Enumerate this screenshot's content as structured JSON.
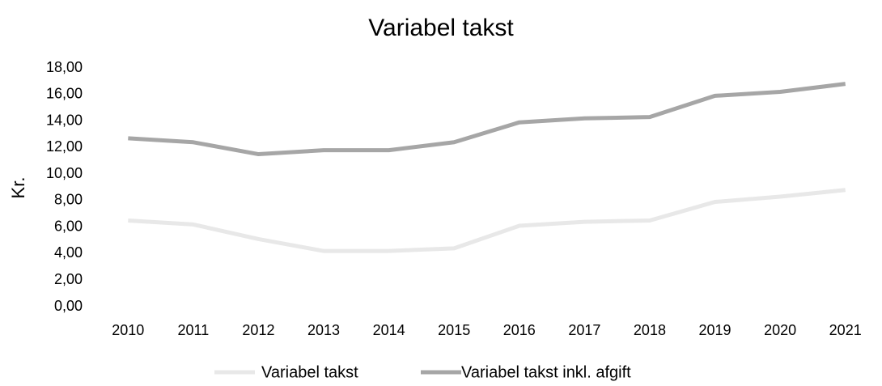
{
  "chart_data": {
    "type": "line",
    "title": "Variabel takst",
    "y_label": "Kr.",
    "categories": [
      "2010",
      "2011",
      "2012",
      "2013",
      "2014",
      "2015",
      "2016",
      "2017",
      "2018",
      "2019",
      "2020",
      "2021"
    ],
    "series": [
      {
        "name": "Variabel takst",
        "color": "#e8e8e8",
        "values": [
          6.5,
          6.2,
          5.1,
          4.2,
          4.2,
          4.4,
          6.1,
          6.4,
          6.5,
          7.9,
          8.3,
          8.8
        ]
      },
      {
        "name": "Variabel takst inkl. afgift",
        "color": "#a6a6a6",
        "values": [
          12.7,
          12.4,
          11.5,
          11.8,
          11.8,
          12.4,
          13.9,
          14.2,
          14.3,
          15.9,
          16.2,
          16.8
        ]
      }
    ],
    "ylim": [
      0,
      18
    ],
    "yticks": [
      {
        "value": 0,
        "label": "0,00"
      },
      {
        "value": 2,
        "label": "2,00"
      },
      {
        "value": 4,
        "label": "4,00"
      },
      {
        "value": 6,
        "label": "6,00"
      },
      {
        "value": 8,
        "label": "8,00"
      },
      {
        "value": 10,
        "label": "10,00"
      },
      {
        "value": 12,
        "label": "12,00"
      },
      {
        "value": 14,
        "label": "14,00"
      },
      {
        "value": 16,
        "label": "16,00"
      },
      {
        "value": 18,
        "label": "18,00"
      }
    ],
    "grid": false,
    "legend": "bottom"
  }
}
